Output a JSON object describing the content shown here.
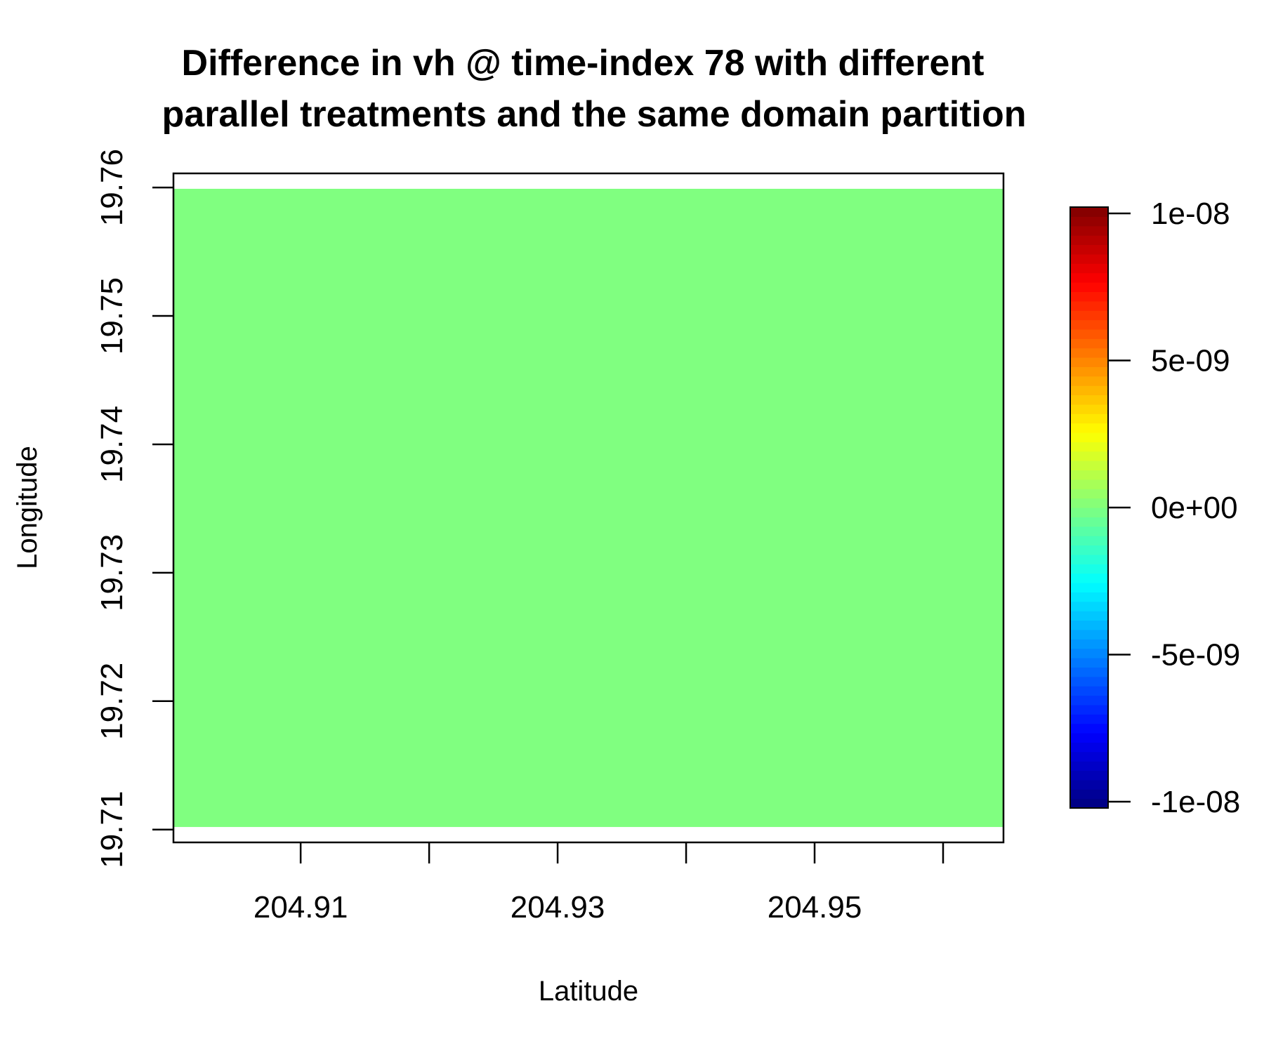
{
  "chart_data": {
    "type": "heatmap",
    "title_lines": [
      "Difference in vh @ time-index 78 with different",
      "parallel treatments and the same domain partition"
    ],
    "xlabel": "Latitude",
    "ylabel": "Longitude",
    "x_ticks": [
      204.91,
      204.92,
      204.93,
      204.94,
      204.95,
      204.96
    ],
    "x_tick_labels": [
      "204.91",
      "",
      "204.93",
      "",
      "204.95",
      ""
    ],
    "y_ticks": [
      19.71,
      19.72,
      19.73,
      19.74,
      19.75,
      19.76
    ],
    "y_tick_labels": [
      "19.71",
      "19.72",
      "19.73",
      "19.74",
      "19.75",
      "19.76"
    ],
    "xlim": [
      204.9001,
      204.9647
    ],
    "ylim": [
      19.709,
      19.7611
    ],
    "field_extent": {
      "x": [
        204.9001,
        204.9647
      ],
      "y": [
        19.7102,
        19.7599
      ]
    },
    "field_value": 0,
    "field_color": "#80ff80",
    "colorbar": {
      "range": [
        -1e-08,
        1e-08
      ],
      "ticks": [
        -1e-08,
        -5e-09,
        0,
        5e-09,
        1e-08
      ],
      "tick_labels": [
        "-1e-08",
        "-5e-09",
        "0e+00",
        "5e-09",
        "1e-08"
      ],
      "colors": [
        "#00007f",
        "#0000ff",
        "#007fff",
        "#00ffff",
        "#7fff7f",
        "#ffff00",
        "#ff7f00",
        "#ff0000",
        "#7f0000"
      ]
    }
  }
}
